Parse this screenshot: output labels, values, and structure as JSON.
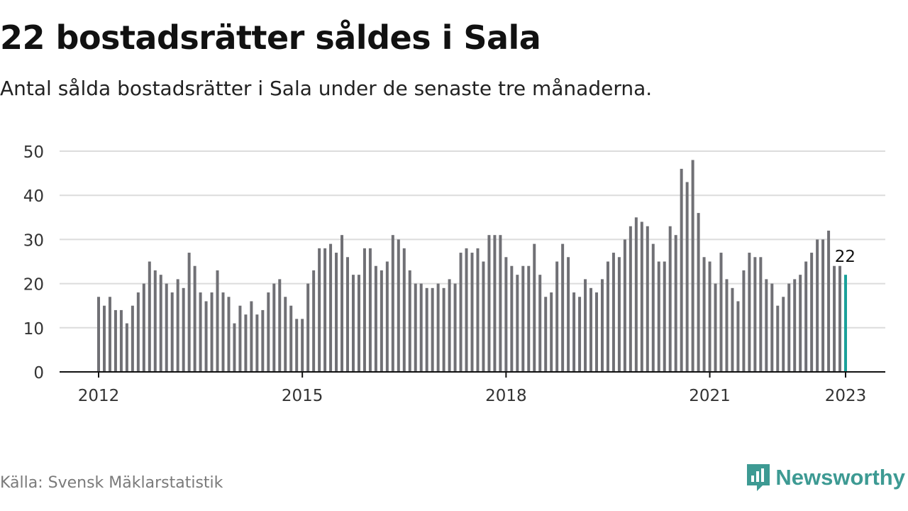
{
  "header": {
    "title": "22 bostadsrätter såldes i Sala",
    "subtitle": "Antal sålda bostadsrätter i Sala under de senaste tre månaderna."
  },
  "footer": {
    "source": "Källa: Svensk Mäklarstatistik",
    "logo_text": "Newsworthy",
    "logo_icon": "bar-chart-speech-bubble-icon"
  },
  "colors": {
    "bar": "#707075",
    "highlight": "#1aa19a",
    "grid": "#dcdcdc",
    "axis": "#111111",
    "brand": "#3d9a93"
  },
  "chart_data": {
    "type": "bar",
    "title": "22 bostadsrätter såldes i Sala",
    "subtitle": "Antal sålda bostadsrätter i Sala under de senaste tre månaderna.",
    "xlabel": "",
    "ylabel": "",
    "ylim": [
      0,
      50
    ],
    "yticks": [
      0,
      10,
      20,
      30,
      40,
      50
    ],
    "xtick_labels": [
      "2012",
      "2015",
      "2018",
      "2021",
      "2023"
    ],
    "grid": true,
    "legend": "none",
    "start_month": "2012-01",
    "end_month": "2023-01",
    "values": [
      17,
      15,
      17,
      14,
      14,
      11,
      15,
      18,
      20,
      25,
      23,
      22,
      20,
      18,
      21,
      19,
      27,
      24,
      18,
      16,
      18,
      23,
      18,
      17,
      11,
      15,
      13,
      16,
      13,
      14,
      18,
      20,
      21,
      17,
      15,
      12,
      12,
      20,
      23,
      28,
      28,
      29,
      27,
      31,
      26,
      22,
      22,
      28,
      28,
      24,
      23,
      25,
      31,
      30,
      28,
      23,
      20,
      20,
      19,
      19,
      20,
      19,
      21,
      20,
      27,
      28,
      27,
      28,
      25,
      31,
      31,
      31,
      26,
      24,
      22,
      24,
      24,
      29,
      22,
      17,
      18,
      25,
      29,
      26,
      18,
      17,
      21,
      19,
      18,
      21,
      25,
      27,
      26,
      30,
      33,
      35,
      34,
      33,
      29,
      25,
      25,
      33,
      31,
      46,
      43,
      48,
      36,
      26,
      25,
      20,
      27,
      21,
      19,
      16,
      23,
      27,
      26,
      26,
      21,
      20,
      15,
      17,
      20,
      21,
      22,
      25,
      27,
      30,
      30,
      32,
      24,
      24,
      22
    ],
    "highlight": {
      "label": "22",
      "value": 22,
      "position": "last"
    }
  }
}
